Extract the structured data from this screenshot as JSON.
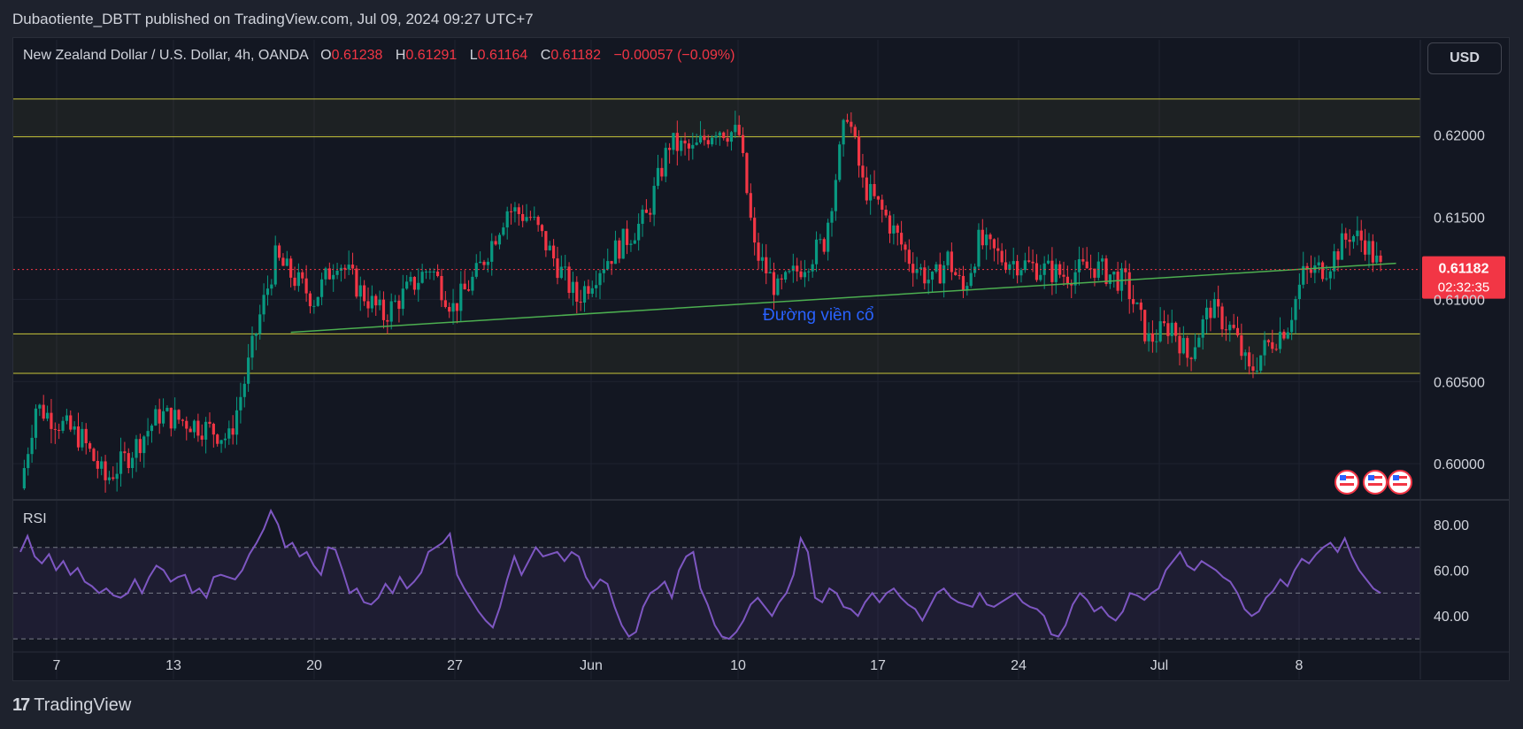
{
  "header": {
    "publish_line": "Dubaotiente_DBTT published on TradingView.com, Jul 09, 2024 09:27 UTC+7"
  },
  "legend": {
    "symbol": "New Zealand Dollar / U.S. Dollar, 4h, OANDA",
    "o_label": "O",
    "o_value": "0.61238",
    "h_label": "H",
    "h_value": "0.61291",
    "l_label": "L",
    "l_value": "0.61164",
    "c_label": "C",
    "c_value": "0.61182",
    "change": "−0.00057 (−0.09%)"
  },
  "currency_button": "USD",
  "price_tag": {
    "price": "0.61182",
    "countdown": "02:32:35"
  },
  "annotation_text": "Đường viền cổ",
  "rsi_label": "RSI",
  "footer": {
    "brand": "TradingView",
    "logo": "17"
  },
  "colors": {
    "background": "#131722",
    "up": "#089981",
    "down": "#f23645",
    "zone_line": "#c8c63a",
    "neckline": "#4caf50",
    "rsi": "#7e57c2",
    "annotation": "#2962ff"
  },
  "chart_data": [
    {
      "type": "candlestick",
      "title": "New Zealand Dollar / U.S. Dollar, 4h, OANDA",
      "x_tick_labels": [
        "7",
        "13",
        "20",
        "27",
        "Jun",
        "10",
        "17",
        "24",
        "Jul",
        "8"
      ],
      "y_ticks": [
        0.6,
        0.605,
        0.61,
        0.615,
        0.62
      ],
      "y_tick_labels": [
        "0.60000",
        "0.60500",
        "0.61000",
        "0.61500",
        "0.62000"
      ],
      "ylim": [
        0.5978,
        0.6258
      ],
      "last_price": 0.61182,
      "close_path": [
        {
          "i": 0,
          "v": 0.5985
        },
        {
          "i": 4,
          "v": 0.6035
        },
        {
          "i": 10,
          "v": 0.6025
        },
        {
          "i": 16,
          "v": 0.6015
        },
        {
          "i": 22,
          "v": 0.599
        },
        {
          "i": 28,
          "v": 0.6005
        },
        {
          "i": 36,
          "v": 0.603
        },
        {
          "i": 44,
          "v": 0.6025
        },
        {
          "i": 50,
          "v": 0.602
        },
        {
          "i": 54,
          "v": 0.6015
        },
        {
          "i": 58,
          "v": 0.605
        },
        {
          "i": 62,
          "v": 0.609
        },
        {
          "i": 66,
          "v": 0.6125
        },
        {
          "i": 72,
          "v": 0.611
        },
        {
          "i": 76,
          "v": 0.61
        },
        {
          "i": 82,
          "v": 0.6125
        },
        {
          "i": 88,
          "v": 0.6105
        },
        {
          "i": 94,
          "v": 0.609
        },
        {
          "i": 100,
          "v": 0.6105
        },
        {
          "i": 106,
          "v": 0.612
        },
        {
          "i": 112,
          "v": 0.6095
        },
        {
          "i": 118,
          "v": 0.6115
        },
        {
          "i": 126,
          "v": 0.6155
        },
        {
          "i": 132,
          "v": 0.615
        },
        {
          "i": 138,
          "v": 0.6125
        },
        {
          "i": 144,
          "v": 0.61
        },
        {
          "i": 150,
          "v": 0.612
        },
        {
          "i": 156,
          "v": 0.6135
        },
        {
          "i": 162,
          "v": 0.615
        },
        {
          "i": 168,
          "v": 0.6195
        },
        {
          "i": 174,
          "v": 0.619
        },
        {
          "i": 180,
          "v": 0.6205
        },
        {
          "i": 186,
          "v": 0.62
        },
        {
          "i": 190,
          "v": 0.613
        },
        {
          "i": 196,
          "v": 0.6105
        },
        {
          "i": 202,
          "v": 0.612
        },
        {
          "i": 208,
          "v": 0.6135
        },
        {
          "i": 214,
          "v": 0.6215
        },
        {
          "i": 218,
          "v": 0.617
        },
        {
          "i": 224,
          "v": 0.615
        },
        {
          "i": 230,
          "v": 0.6125
        },
        {
          "i": 236,
          "v": 0.611
        },
        {
          "i": 240,
          "v": 0.6125
        },
        {
          "i": 244,
          "v": 0.6105
        },
        {
          "i": 248,
          "v": 0.6135
        },
        {
          "i": 254,
          "v": 0.6125
        },
        {
          "i": 262,
          "v": 0.612
        },
        {
          "i": 270,
          "v": 0.6115
        },
        {
          "i": 278,
          "v": 0.612
        },
        {
          "i": 286,
          "v": 0.611
        },
        {
          "i": 292,
          "v": 0.6075
        },
        {
          "i": 298,
          "v": 0.6085
        },
        {
          "i": 302,
          "v": 0.6065
        },
        {
          "i": 308,
          "v": 0.6095
        },
        {
          "i": 314,
          "v": 0.608
        },
        {
          "i": 318,
          "v": 0.6055
        },
        {
          "i": 322,
          "v": 0.607
        },
        {
          "i": 328,
          "v": 0.6085
        },
        {
          "i": 332,
          "v": 0.6115
        },
        {
          "i": 338,
          "v": 0.612
        },
        {
          "i": 344,
          "v": 0.614
        },
        {
          "i": 348,
          "v": 0.6135
        },
        {
          "i": 352,
          "v": 0.6118
        }
      ],
      "zones": [
        {
          "top": 0.6222,
          "bottom": 0.6199
        },
        {
          "top": 0.6079,
          "bottom": 0.6055
        }
      ],
      "neckline": {
        "start": {
          "i": 70,
          "v": 0.608
        },
        "end": {
          "i": 356,
          "v": 0.6122
        }
      }
    },
    {
      "type": "line",
      "title": "RSI",
      "y_tick_labels": [
        "40.00",
        "60.00",
        "80.00"
      ],
      "ylim": [
        25,
        90
      ],
      "levels": [
        70,
        50,
        30
      ],
      "values": [
        68,
        75,
        66,
        63,
        67,
        60,
        64,
        58,
        61,
        55,
        53,
        50,
        52,
        49,
        48,
        50,
        56,
        50,
        57,
        62,
        60,
        55,
        57,
        58,
        50,
        52,
        48,
        57,
        58,
        57,
        56,
        60,
        67,
        72,
        78,
        86,
        80,
        70,
        72,
        66,
        68,
        62,
        58,
        70,
        69,
        60,
        50,
        52,
        46,
        45,
        48,
        54,
        50,
        57,
        52,
        55,
        59,
        68,
        70,
        72,
        76,
        58,
        52,
        47,
        42,
        38,
        35,
        44,
        56,
        66,
        58,
        64,
        70,
        66,
        67,
        68,
        64,
        68,
        66,
        57,
        52,
        56,
        54,
        44,
        36,
        31,
        33,
        44,
        50,
        52,
        55,
        48,
        60,
        66,
        68,
        52,
        45,
        36,
        31,
        30,
        33,
        38,
        45,
        48,
        44,
        40,
        46,
        50,
        58,
        74,
        68,
        48,
        46,
        52,
        50,
        44,
        43,
        40,
        46,
        50,
        46,
        50,
        52,
        48,
        45,
        43,
        38,
        44,
        50,
        52,
        48,
        46,
        45,
        44,
        50,
        45,
        44,
        46,
        48,
        50,
        46,
        44,
        43,
        40,
        32,
        31,
        36,
        45,
        50,
        47,
        42,
        44,
        40,
        38,
        42,
        50,
        49,
        47,
        50,
        52,
        60,
        64,
        68,
        62,
        60,
        64,
        62,
        60,
        57,
        55,
        50,
        43,
        40,
        42,
        48,
        51,
        56,
        53,
        60,
        65,
        63,
        67,
        70,
        72,
        68,
        74,
        66,
        60,
        56,
        52,
        50
      ]
    }
  ]
}
